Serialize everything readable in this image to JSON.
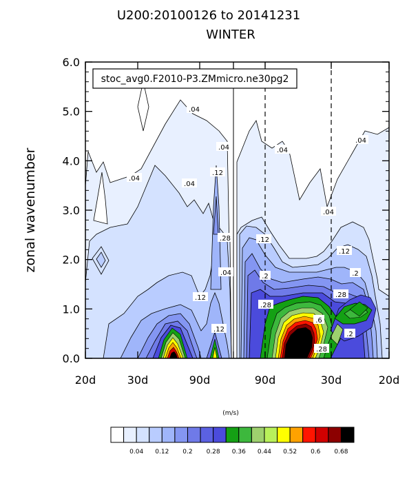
{
  "chart_data": {
    "type": "heatmap",
    "title": "U200:20100126 to 20141231",
    "subtitle": "WINTER",
    "annotation": "stoc_avg0.F2010-P3.ZMmicro.ne30pg2",
    "xlabel": "",
    "ylabel": "zonal wavenumber",
    "x_tick_labels": [
      "20d",
      "30d",
      "90d",
      "",
      "90d",
      "30d",
      "20d"
    ],
    "y_tick_labels": [
      "0.0",
      "1.0",
      "2.0",
      "3.0",
      "4.0",
      "5.0",
      "6.0"
    ],
    "ylim": [
      0,
      6
    ],
    "x_range": [
      -0.05,
      0.05
    ],
    "units": "(m/s)",
    "colorbar": {
      "levels": [
        0.02,
        0.04,
        0.06,
        0.08,
        0.12,
        0.16,
        0.2,
        0.24,
        0.28,
        0.32,
        0.36,
        0.4,
        0.44,
        0.48,
        0.52,
        0.56,
        0.6,
        0.64,
        0.68
      ],
      "tick_labels": [
        "0.04",
        "0.12",
        "0.2",
        "0.28",
        "0.36",
        "0.44",
        "0.52",
        "0.6",
        "0.68"
      ],
      "colors": [
        "#ffffff",
        "#e8f0ff",
        "#d4e2ff",
        "#b9ccff",
        "#9fb5fa",
        "#8496f2",
        "#6f7ae8",
        "#5b61e2",
        "#4b4bdc",
        "#14a014",
        "#3db83d",
        "#9ed06e",
        "#b8f05a",
        "#ffff00",
        "#ffa200",
        "#ff1500",
        "#d10000",
        "#8c0000",
        "#000000"
      ]
    },
    "contour_labels": [
      ".04",
      ".04",
      ".04",
      ".04",
      ".04",
      ".04",
      ".04",
      ".04",
      ".12",
      ".12",
      ".12",
      ".12",
      ".12",
      ".2",
      ".2",
      ".2",
      ".28",
      ".28",
      ".28",
      ".28",
      ".6"
    ],
    "grid": false
  }
}
